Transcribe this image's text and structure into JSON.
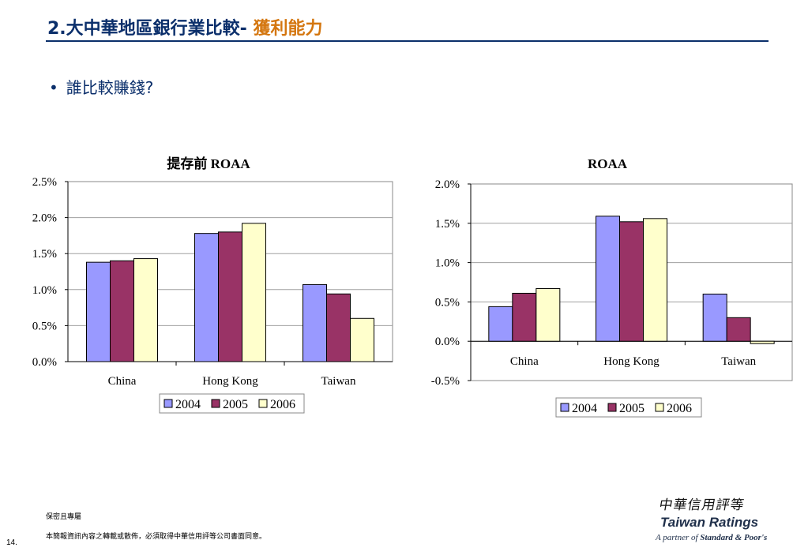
{
  "header": {
    "title_main": "2.大中華地區銀行業比較-",
    "title_accent": "獲利能力"
  },
  "bullet": {
    "text": "誰比較賺錢?"
  },
  "colors": {
    "s2004": "#9999ff",
    "s2005": "#993366",
    "s2006": "#ffffcc",
    "title_blue": "#0b2f6b",
    "accent": "#d4760f"
  },
  "chart_data": [
    {
      "type": "bar",
      "title": "提存前 ROAA",
      "categories": [
        "China",
        "Hong Kong",
        "Taiwan"
      ],
      "series": [
        {
          "name": "2004",
          "values": [
            1.38,
            1.78,
            1.07
          ]
        },
        {
          "name": "2005",
          "values": [
            1.4,
            1.8,
            0.94
          ]
        },
        {
          "name": "2006",
          "values": [
            1.43,
            1.92,
            0.6
          ]
        }
      ],
      "ylim": [
        0,
        2.5
      ],
      "yticks": [
        0,
        0.5,
        1.0,
        1.5,
        2.0,
        2.5
      ],
      "ytick_labels": [
        "0.0%",
        "0.5%",
        "1.0%",
        "1.5%",
        "2.0%",
        "2.5%"
      ],
      "grid": true,
      "legend": "bottom"
    },
    {
      "type": "bar",
      "title": "ROAA",
      "categories": [
        "China",
        "Hong Kong",
        "Taiwan"
      ],
      "series": [
        {
          "name": "2004",
          "values": [
            0.44,
            1.59,
            0.6
          ]
        },
        {
          "name": "2005",
          "values": [
            0.61,
            1.52,
            0.3
          ]
        },
        {
          "name": "2006",
          "values": [
            0.67,
            1.56,
            -0.03
          ]
        }
      ],
      "ylim": [
        -0.5,
        2.0
      ],
      "yticks": [
        -0.5,
        0,
        0.5,
        1.0,
        1.5,
        2.0
      ],
      "ytick_labels": [
        "-0.5%",
        "0.0%",
        "0.5%",
        "1.0%",
        "1.5%",
        "2.0%"
      ],
      "grid": true,
      "legend": "bottom"
    }
  ],
  "footer": {
    "confidential": "保密且專屬",
    "disclaimer": "本簡報資訊內容之轉載或散佈，必須取得中華信用評等公司書面同意。",
    "page": "14."
  },
  "logo": {
    "cn": "中華信用評等",
    "en": "Taiwan Ratings",
    "sub_prefix": "A partner of",
    "sub_brand": "Standard & Poor's"
  }
}
